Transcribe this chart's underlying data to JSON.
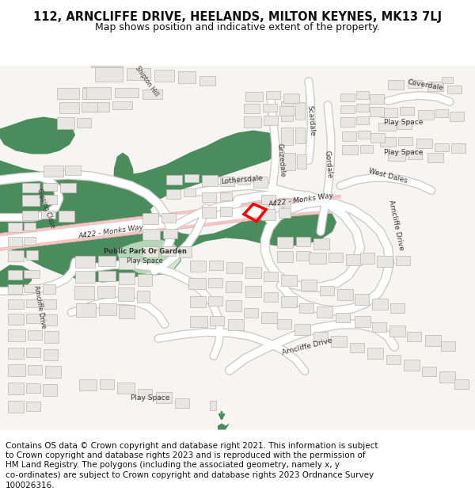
{
  "title_line1": "112, ARNCLIFFE DRIVE, HEELANDS, MILTON KEYNES, MK13 7LJ",
  "title_line2": "Map shows position and indicative extent of the property.",
  "title_fontsize": 10.5,
  "subtitle_fontsize": 9,
  "footer_lines": [
    "Contains OS data © Crown copyright and database right 2021. This information is subject",
    "to Crown copyright and database rights 2023 and is reproduced with the permission of",
    "HM Land Registry. The polygons (including the associated geometry, namely x, y",
    "co-ordinates) are subject to Crown copyright and database rights 2023 Ordnance Survey",
    "100026316."
  ],
  "footer_fontsize": 7.5,
  "bg_color": "#ffffff",
  "map_bg": "#f7f5f2",
  "road_pink": "#f5c6c6",
  "road_pink_edge": "#e8aaaa",
  "green_dark": "#4a8c5c",
  "green_light": "#c8e6c8",
  "building_color": "#e8e6e3",
  "building_edge": "#b8b5b0",
  "road_white": "#ffffff",
  "road_white_edge": "#cccccc",
  "label_color": "#333333",
  "red_color": "#ff0000"
}
